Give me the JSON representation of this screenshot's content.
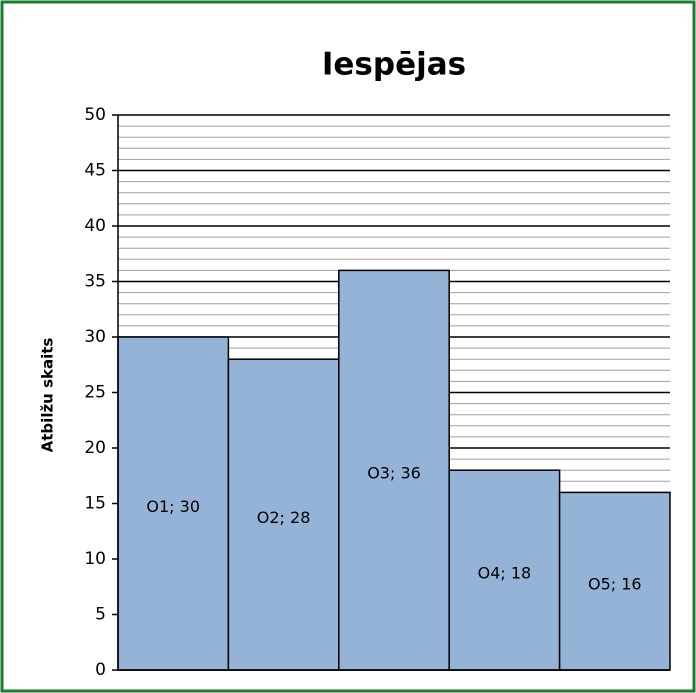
{
  "chart_data": {
    "type": "bar",
    "title": "Iespējas",
    "y_label": "Atbilžu skaits",
    "categories": [
      "O1",
      "O2",
      "O3",
      "O4",
      "O5"
    ],
    "values": [
      30,
      28,
      36,
      18,
      16
    ],
    "value_labels": [
      "O1; 30",
      "O2; 28",
      "O3; 36",
      "O4; 18",
      "O5; 16"
    ],
    "color": "#95b3d7",
    "ylim": [
      0,
      50
    ],
    "yticks": [
      0,
      5,
      10,
      15,
      20,
      25,
      30,
      35,
      40,
      45,
      50
    ],
    "yminorticks": [
      1,
      2,
      3,
      4,
      6,
      7,
      8,
      9,
      11,
      12,
      13,
      14,
      16,
      17,
      18,
      19,
      21,
      22,
      23,
      24,
      26,
      27,
      28,
      29,
      31,
      32,
      33,
      34,
      36,
      37,
      38,
      39,
      41,
      42,
      43,
      44,
      46,
      47,
      48,
      49
    ],
    "grid": true
  }
}
